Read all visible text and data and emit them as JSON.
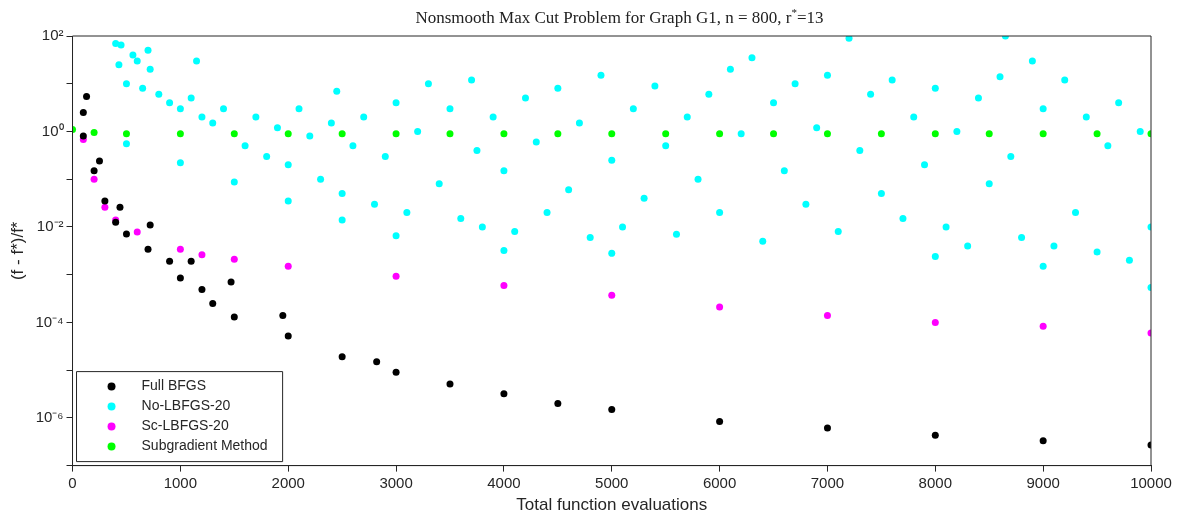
{
  "chart_data": {
    "type": "scatter",
    "title": "Nonsmooth Max Cut Problem for Graph G1, n = 800, r$^{*}$=13",
    "xlabel": "Total function evaluations",
    "ylabel": "(f - f*)/f*",
    "xlim": [
      0,
      10000
    ],
    "xticks": [
      0,
      1000,
      2000,
      3000,
      4000,
      5000,
      6000,
      7000,
      8000,
      9000,
      10000
    ],
    "ylim": [
      1e-07,
      100
    ],
    "yticks": [
      {
        "value": 1e-07,
        "label": null
      },
      {
        "value": 1e-06,
        "label": "10⁻⁶"
      },
      {
        "value": 1e-05,
        "label": null
      },
      {
        "value": 0.0001,
        "label": "10⁻⁴"
      },
      {
        "value": 0.001,
        "label": null
      },
      {
        "value": 0.01,
        "label": "10⁻²"
      },
      {
        "value": 0.1,
        "label": null
      },
      {
        "value": 1,
        "label": "10⁰"
      },
      {
        "value": 10,
        "label": null
      },
      {
        "value": 100,
        "label": "10²"
      }
    ],
    "log": "y",
    "grid": false,
    "legend": "bottom left",
    "marker": "circle",
    "series": [
      {
        "name": "Full BFGS",
        "color": "#000000",
        "x": [
          100,
          200,
          300,
          400,
          500,
          700,
          900,
          1000,
          1200,
          1300,
          1500,
          2000,
          2500,
          3000,
          3500,
          4000,
          4500,
          5000,
          6000,
          7000,
          8000,
          9000,
          10000,
          130,
          100,
          250,
          440,
          720,
          1100,
          1470,
          1950,
          2820
        ],
        "values": [
          0.8,
          0.15,
          0.035,
          0.0126,
          0.0071,
          0.0034,
          0.0019,
          0.00085,
          0.00049,
          0.00025,
          0.00013,
          5.2e-05,
          1.9e-05,
          9e-06,
          5.1e-06,
          3.2e-06,
          2e-06,
          1.5e-06,
          8.4e-07,
          6.1e-07,
          4.3e-07,
          3.3e-07,
          2.7e-07,
          5.4,
          2.5,
          0.24,
          0.026,
          0.011,
          0.0019,
          0.0007,
          0.00014,
          1.5e-05
        ]
      },
      {
        "name": "No-LBFGS-20",
        "color": "#00ffff",
        "x": [
          500,
          1000,
          1500,
          2000,
          2500,
          3000,
          4000,
          5000,
          8000,
          9000,
          10000,
          400,
          450,
          560,
          600,
          700,
          720,
          1150,
          430,
          500,
          650,
          800,
          900,
          1000,
          1100,
          1200,
          1300,
          1400,
          1600,
          1700,
          1800,
          1900,
          2000,
          2100,
          2200,
          2300,
          2400,
          2450,
          2500,
          2600,
          2700,
          2800,
          2900,
          3000,
          3100,
          3200,
          3300,
          3400,
          3500,
          3600,
          3700,
          3750,
          3800,
          3900,
          4000,
          4100,
          4200,
          4300,
          4400,
          4500,
          4600,
          4700,
          4800,
          4900,
          5000,
          5100,
          5200,
          5300,
          5400,
          5500,
          5600,
          5700,
          5800,
          5900,
          6000,
          6100,
          6200,
          6300,
          6400,
          6500,
          6600,
          6700,
          6800,
          6900,
          7000,
          7100,
          7200,
          7300,
          7400,
          7500,
          7600,
          7700,
          7800,
          7900,
          8000,
          8100,
          8200,
          8300,
          8400,
          8500,
          8600,
          8650,
          8700,
          8800,
          8900,
          9000,
          9100,
          9200,
          9300,
          9400,
          9500,
          9600,
          9700,
          9800,
          9900,
          10000
        ],
        "values": [
          0.55,
          0.22,
          0.087,
          0.035,
          0.014,
          0.0065,
          0.0032,
          0.0028,
          0.0024,
          0.0015,
          0.00054,
          70,
          65,
          40,
          30,
          50,
          20,
          30,
          25,
          10,
          8,
          6,
          4,
          3,
          5,
          2,
          1.5,
          3,
          0.5,
          2,
          0.3,
          1.2,
          0.2,
          3,
          0.8,
          0.1,
          1.5,
          7,
          0.05,
          0.5,
          2,
          0.03,
          0.3,
          4,
          0.02,
          1,
          10,
          0.08,
          3,
          0.015,
          12,
          0.4,
          0.01,
          2,
          0.15,
          0.008,
          5,
          0.6,
          0.02,
          8,
          0.06,
          1.5,
          0.006,
          15,
          0.25,
          0.01,
          3,
          0.04,
          9,
          0.5,
          0.007,
          2,
          0.1,
          6,
          0.02,
          20,
          0.9,
          35,
          0.005,
          4,
          0.15,
          10,
          0.03,
          1.2,
          15,
          0.008,
          90,
          0.4,
          6,
          0.05,
          12,
          0.015,
          2,
          0.2,
          8,
          0.01,
          1,
          0.004,
          5,
          0.08,
          14,
          100,
          0.3,
          0.006,
          30,
          3,
          0.004,
          12,
          0.02,
          2,
          0.003,
          0.5,
          4,
          0.002,
          1,
          0.01
        ]
      },
      {
        "name": "Sc-LBFGS-20",
        "color": "#ff00ff",
        "x": [
          100,
          200,
          300,
          400,
          600,
          1000,
          1200,
          1500,
          2000,
          3000,
          4000,
          5000,
          6000,
          7000,
          8000,
          9000,
          10000
        ],
        "values": [
          0.68,
          0.1,
          0.026,
          0.014,
          0.0078,
          0.0034,
          0.0026,
          0.0021,
          0.0015,
          0.00093,
          0.00059,
          0.00037,
          0.00021,
          0.00014,
          0.0001,
          8.3e-05,
          6e-05
        ]
      },
      {
        "name": "Subgradient Method",
        "color": "#00ff00",
        "x": [
          0,
          200,
          500,
          1000,
          1500,
          2000,
          2500,
          3000,
          3500,
          4000,
          4500,
          5000,
          5500,
          6000,
          6500,
          7000,
          7500,
          8000,
          8500,
          9000,
          9500,
          10000
        ],
        "values": [
          1.1,
          0.95,
          0.9,
          0.9,
          0.9,
          0.9,
          0.9,
          0.9,
          0.9,
          0.9,
          0.9,
          0.9,
          0.9,
          0.9,
          0.9,
          0.9,
          0.9,
          0.9,
          0.9,
          0.9,
          0.9,
          0.9
        ]
      }
    ]
  }
}
